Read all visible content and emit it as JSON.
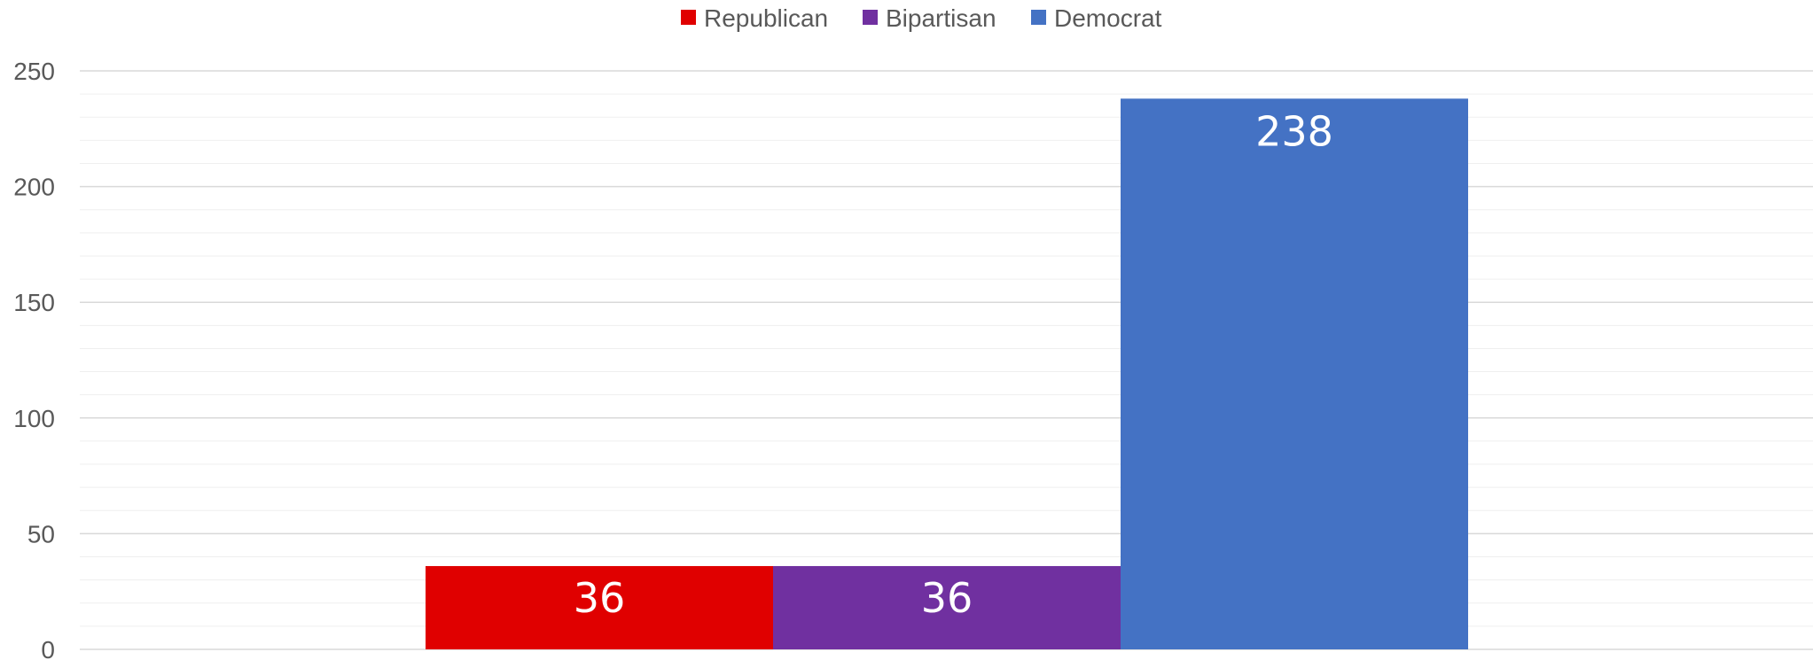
{
  "chart_data": {
    "type": "bar",
    "title": "",
    "xlabel": "",
    "ylabel": "",
    "categories": [
      ""
    ],
    "series": [
      {
        "name": "Republican",
        "values": [
          36
        ],
        "color": "#E00000"
      },
      {
        "name": "Bipartisan",
        "values": [
          36
        ],
        "color": "#7030A0"
      },
      {
        "name": "Democrat",
        "values": [
          238
        ],
        "color": "#4472C4"
      }
    ],
    "ylim": [
      0,
      250
    ],
    "yticks": [
      0,
      50,
      100,
      150,
      200,
      250
    ],
    "ytick_labels": [
      "0",
      "50",
      "100",
      "150",
      "200",
      "250"
    ],
    "data_labels": [
      "36",
      "36",
      "238"
    ],
    "grid": {
      "major": true,
      "minor": true
    },
    "legend_position": "top"
  }
}
